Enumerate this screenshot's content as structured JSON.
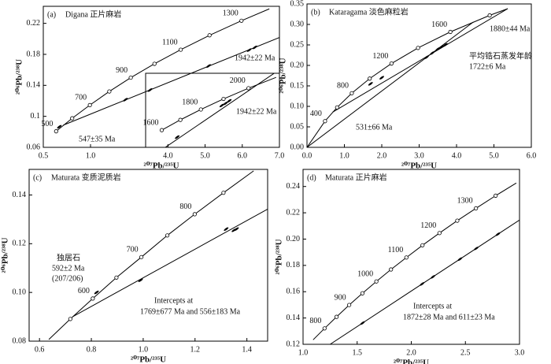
{
  "chart_data": [
    {
      "type": "concordia",
      "panel_label": "(a)",
      "title": "Digana 正片麻岩",
      "xlabel": "²⁰⁷Pb/²³⁵U",
      "ylabel": "²⁰⁶Pb/²³⁸U",
      "xlim": [
        0.5,
        3.0
      ],
      "ylim": [
        0.06,
        0.242
      ],
      "xticks": [
        0.5,
        {
          "value": 1.0,
          "label": "1.0"
        }
      ],
      "yticks": [
        0.06,
        0.1,
        0.14,
        0.18,
        0.22
      ],
      "concordia": {
        "x": [
          0.636,
          0.806,
          0.993,
          1.199,
          1.426,
          1.677,
          1.955,
          2.26,
          2.598,
          2.893
        ],
        "y": [
          0.0807,
          0.0975,
          0.1145,
          0.1321,
          0.1499,
          0.1678,
          0.186,
          0.2046,
          0.2234,
          0.2387
        ],
        "ages": [
          500,
          null,
          700,
          null,
          900,
          null,
          1100,
          null,
          1300,
          null
        ]
      },
      "discordia": [
        {
          "x": [
            0.711,
            3.0
          ],
          "y": [
            0.0886,
            0.2018
          ]
        }
      ],
      "ellipses": {
        "x": [
          0.67,
          1.37,
          1.63,
          2.25,
          2.68,
          2.74
        ],
        "y": [
          0.0866,
          0.1215,
          0.134,
          0.165,
          0.1855,
          0.189
        ]
      },
      "annotations": [
        "547±35 Ma",
        "1942±22 Ma"
      ],
      "inset": {
        "xlim": [
          3.4,
          7.0
        ],
        "ylim": [
          0.248,
          0.393
        ],
        "xticks": [
          {
            "value": 4.0,
            "label": "4.0"
          },
          {
            "value": 5.0,
            "label": "5.0"
          },
          {
            "value": 6.0,
            "label": "6.0"
          },
          {
            "value": 7.0,
            "label": "7.0"
          }
        ],
        "concordia": {
          "x": [
            3.834,
            4.335,
            4.887,
            5.496,
            6.168,
            6.911
          ],
          "y": [
            0.2817,
            0.3018,
            0.3221,
            0.3428,
            0.3638,
            0.385
          ],
          "ages": [
            1600,
            null,
            1800,
            null,
            2000,
            null
          ]
        },
        "discordia": [
          {
            "x": [
              3.9,
              7.0
            ],
            "y": [
              0.2465,
              0.4
            ]
          }
        ],
        "ellipses": {
          "x": [
            4.25,
            5.45,
            5.55,
            5.65
          ],
          "y": [
            0.268,
            0.33,
            0.334,
            0.339
          ]
        },
        "annotations": [
          "1942±22 Ma"
        ]
      }
    },
    {
      "type": "concordia",
      "panel_label": "(b)",
      "title": "Kataragama 淡色麻粒岩",
      "xlabel": "²⁰⁷Pb/²³⁵U",
      "ylabel": "²⁰⁶Pb/²³⁸U",
      "xlim": [
        0,
        6.0
      ],
      "ylim": [
        0,
        0.35
      ],
      "xticks": [
        {
          "value": 0,
          "label": "0.0"
        },
        {
          "value": 1.0,
          "label": "1.0"
        },
        {
          "value": 2.0,
          "label": "2.0"
        },
        {
          "value": 3.0,
          "label": "3.0"
        },
        {
          "value": 4.0,
          "label": "4.0"
        },
        {
          "value": 5.0,
          "label": "5.0"
        },
        {
          "value": 6.0,
          "label": "6.0"
        }
      ],
      "yticks": [
        {
          "value": 0,
          "label": "0.00"
        },
        0.05,
        {
          "value": 0.1,
          "label": "0.10"
        },
        0.15,
        {
          "value": 0.2,
          "label": "0.20"
        },
        0.25,
        {
          "value": 0.3,
          "label": "0.30"
        },
        0.35
      ],
      "concordia": {
        "x": [
          0,
          0.4828,
          0.8056,
          1.1987,
          1.6774,
          2.2604,
          2.9701,
          3.8344,
          4.8866,
          5.3697
        ],
        "y": [
          0,
          0.06398,
          0.09751,
          0.13213,
          0.16781,
          0.2046,
          0.2426,
          0.28173,
          0.32211,
          0.3386
        ],
        "ages": [
          null,
          400,
          null,
          800,
          null,
          1200,
          null,
          1600,
          null,
          null
        ]
      },
      "discordia": [
        {
          "x": [
            0.687,
            5.3697
          ],
          "y": [
            0.0859,
            0.3386
          ]
        },
        {
          "x": [
            0,
            4.451
          ],
          "y": [
            0,
            0.306
          ]
        }
      ],
      "ellipses": {
        "x": [
          1.7,
          2.0,
          3.2,
          3.35,
          3.5,
          3.6,
          3.7
        ],
        "y": [
          0.155,
          0.17,
          0.22,
          0.23,
          0.24,
          0.245,
          0.25
        ]
      },
      "annotations": [
        "1880±44 Ma",
        "平均锆石蒸发年龄",
        "1722±6 Ma",
        "531±66 Ma"
      ]
    },
    {
      "type": "concordia",
      "panel_label": "(c)",
      "title": "Maturata 变质泥质岩",
      "xlabel": "²⁰⁷Pb/²³⁵U",
      "ylabel": "²⁰⁶Pb/²³⁸U",
      "xlim": [
        0.56,
        1.48
      ],
      "ylim": [
        0.08,
        0.1505
      ],
      "xticks": [
        0.6,
        0.8,
        {
          "value": 1.0,
          "label": "1.0"
        },
        1.2,
        1.4
      ],
      "yticks": [
        0.08,
        {
          "value": 0.1,
          "label": "0.10"
        },
        0.12,
        0.14
      ],
      "concordia": {
        "x": [
          0.636,
          0.7189,
          0.8056,
          0.8968,
          0.993,
          1.0931,
          1.1987,
          1.3097,
          1.426
        ],
        "y": [
          0.0807,
          0.0891,
          0.0975,
          0.1061,
          0.1145,
          0.1234,
          0.1321,
          0.1409,
          0.1499
        ],
        "ages": [
          null,
          null,
          600,
          null,
          700,
          null,
          800,
          null,
          null
        ]
      },
      "discordia": [
        {
          "x": [
            0.7289,
            1.48
          ],
          "y": [
            0.0901,
            0.1342
          ]
        }
      ],
      "ellipses": {
        "x": [
          0.82,
          0.99,
          1.32,
          1.35,
          1.36
        ],
        "y": [
          0.1,
          0.105,
          0.126,
          0.1255,
          0.126
        ]
      },
      "annotations": [
        "独居石",
        "592±2 Ma",
        "(207/206)",
        "Intercepts at",
        "1769±677 Ma and 556±183 Ma"
      ]
    },
    {
      "type": "concordia",
      "panel_label": "(d)",
      "title": "Maturata 正片麻岩",
      "xlabel": "²⁰⁷Pb/²³⁵U",
      "ylabel": "²⁰⁶Pb/²³⁸U",
      "xlim": [
        1.0,
        3.0
      ],
      "ylim": [
        0.12,
        0.253
      ],
      "xticks": [
        {
          "value": 1.0,
          "label": "1.0"
        },
        1.5,
        {
          "value": 2.0,
          "label": "2.0"
        },
        2.5,
        {
          "value": 3.0,
          "label": "3.0"
        }
      ],
      "yticks": [
        0.12,
        0.14,
        0.16,
        0.18,
        {
          "value": 0.2,
          "label": "0.20"
        },
        0.22,
        0.24
      ],
      "concordia": {
        "x": [
          1.0931,
          1.1987,
          1.3097,
          1.4263,
          1.5487,
          1.6774,
          1.8125,
          1.9546,
          2.1037,
          2.2604,
          2.4249,
          2.5975,
          2.7794,
          2.9701
        ],
        "y": [
          0.1234,
          0.1321,
          0.1409,
          0.1499,
          0.1588,
          0.1678,
          0.1769,
          0.186,
          0.1953,
          0.2046,
          0.214,
          0.2234,
          0.233,
          0.2426
        ],
        "ages": [
          null,
          800,
          null,
          900,
          null,
          1000,
          null,
          1100,
          null,
          1200,
          null,
          1300,
          null,
          null
        ]
      },
      "discordia": [
        {
          "x": [
            1.25,
            3.0
          ],
          "y": [
            0.12,
            0.2145
          ]
        }
      ],
      "ellipses": {
        "x": [
          1.55,
          2.1,
          2.2,
          2.45,
          2.6,
          2.8
        ],
        "y": [
          0.1362,
          0.1659,
          0.1713,
          0.1848,
          0.1929,
          0.2037
        ]
      },
      "annotations": [
        "Intercepts at",
        "1872±28 Ma and 611±23 Ma"
      ]
    }
  ]
}
